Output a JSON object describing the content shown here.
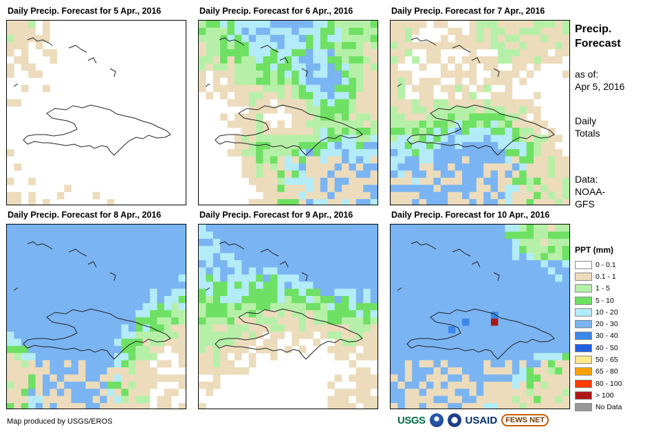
{
  "panels": [
    {
      "title": "Daily Precip. Forecast for 5 Apr., 2016",
      "seed": 5,
      "tan": 0.1,
      "green": 0.1,
      "moist": 0.6
    },
    {
      "title": "Daily Precip. Forecast for 6 Apr., 2016",
      "seed": 6,
      "tan": 0.1,
      "green": 0.05,
      "moist": 1.2
    },
    {
      "title": "Daily Precip. Forecast for 7 Apr., 2016",
      "seed": 7,
      "tan": 0.0,
      "green": 0.25,
      "moist": 0.7
    },
    {
      "title": "Daily Precip. Forecast for 8 Apr., 2016",
      "seed": 8,
      "tan": 0.0,
      "green": 0.15,
      "moist": 0.8
    },
    {
      "title": "Daily Precip. Forecast for 9 Apr., 2016",
      "seed": 9,
      "tan": 0.05,
      "green": 0.1,
      "moist": 0.9
    },
    {
      "title": "Daily Precip. Forecast for 10 Apr., 2016",
      "seed": 10,
      "tan": 0.3,
      "green": 0.05,
      "moist": 1.3
    }
  ],
  "side": {
    "title_line1": "Precip.",
    "title_line2": "Forecast",
    "asof_label": "as of:",
    "asof_date": "Apr 5, 2016",
    "totals_line1": "Daily",
    "totals_line2": "Totals",
    "data_line1": "Data:",
    "data_line2": "NOAA-",
    "data_line3": "GFS"
  },
  "legend": {
    "title": "PPT (mm)",
    "items": [
      {
        "label": "0 - 0.1",
        "color": "#ffffff"
      },
      {
        "label": "0.1 - 1",
        "color": "#ecdcbc"
      },
      {
        "label": "1 - 5",
        "color": "#b6f0a8"
      },
      {
        "label": "5 - 10",
        "color": "#6ee063"
      },
      {
        "label": "10 - 20",
        "color": "#b3ecf8"
      },
      {
        "label": "20 - 30",
        "color": "#7ab4f2"
      },
      {
        "label": "30 - 40",
        "color": "#3c87e8"
      },
      {
        "label": "40 - 50",
        "color": "#1f5ee0"
      },
      {
        "label": "50 - 65",
        "color": "#ffe98a"
      },
      {
        "label": "65 - 80",
        "color": "#ffa200"
      },
      {
        "label": "80 - 100",
        "color": "#ff3c00"
      },
      {
        "label": "> 100",
        "color": "#b01818"
      },
      {
        "label": "No Data",
        "color": "#999999"
      }
    ]
  },
  "footer": {
    "credit": "Map produced by USGS/EROS",
    "logo_usgs": "USGS",
    "logo_usaid": "USAID",
    "logo_fews": "FEWS NET"
  }
}
